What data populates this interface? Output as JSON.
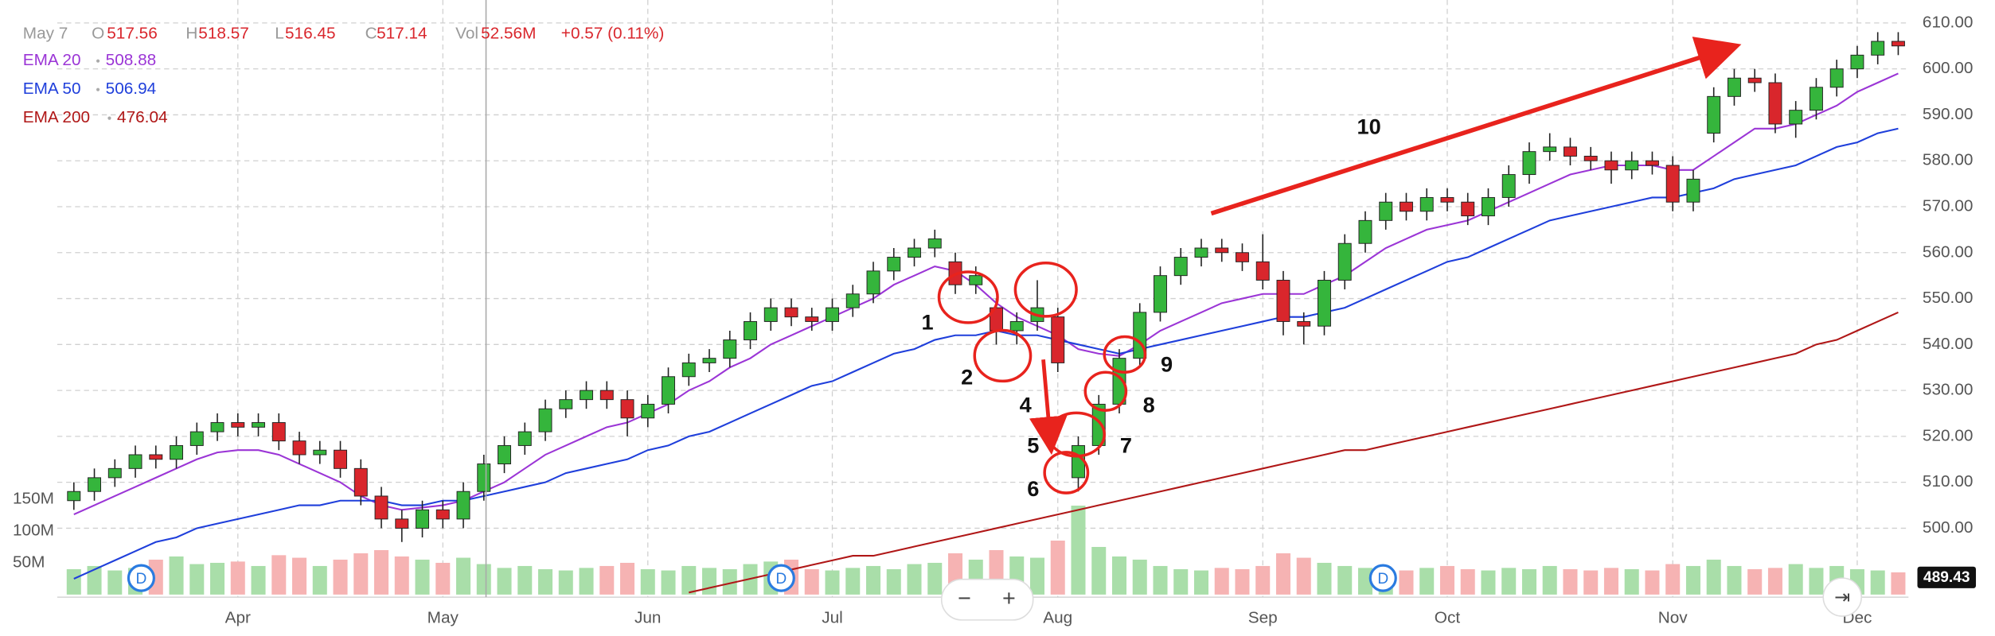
{
  "chart_data": {
    "type": "candlestick",
    "header": {
      "date": "May 7",
      "open_label": "O",
      "open": 517.56,
      "high_label": "H",
      "high": 518.57,
      "low_label": "L",
      "low": 516.45,
      "close_label": "C",
      "close": 517.14,
      "volume_label": "Vol",
      "volume": "52.56M",
      "change": "+0.57 (0.11%)"
    },
    "categories": [
      null,
      null,
      null,
      null,
      null,
      null,
      null,
      null,
      "Apr",
      null,
      null,
      null,
      null,
      null,
      null,
      null,
      null,
      null,
      "May",
      null,
      null,
      null,
      null,
      null,
      null,
      null,
      null,
      null,
      "Jun",
      null,
      null,
      null,
      null,
      null,
      null,
      null,
      null,
      "Jul",
      null,
      null,
      null,
      null,
      null,
      null,
      null,
      null,
      null,
      null,
      "Aug",
      null,
      null,
      null,
      null,
      null,
      null,
      null,
      null,
      null,
      "Sep",
      null,
      null,
      null,
      null,
      null,
      null,
      null,
      null,
      "Oct",
      null,
      null,
      null,
      null,
      null,
      null,
      null,
      null,
      null,
      null,
      "Nov",
      null,
      null,
      null,
      null,
      null,
      null,
      null,
      null,
      "Dec",
      null,
      null
    ],
    "open": [
      506,
      508,
      511,
      513,
      516,
      515,
      518,
      521,
      523,
      522,
      523,
      519,
      516,
      517,
      513,
      507,
      502,
      500,
      504,
      502,
      508,
      514,
      518,
      521,
      526,
      528,
      530,
      528,
      524,
      527,
      533,
      536,
      537,
      541,
      545,
      548,
      546,
      545,
      548,
      551,
      556,
      559,
      561,
      558,
      553,
      548,
      543,
      545,
      546,
      511,
      518,
      527,
      537,
      547,
      555,
      559,
      561,
      560,
      558,
      554,
      545,
      544,
      554,
      562,
      567,
      571,
      569,
      572,
      571,
      568,
      572,
      577,
      582,
      583,
      581,
      580,
      578,
      580,
      579,
      571,
      586,
      594,
      598,
      597,
      588,
      591,
      596,
      600,
      603,
      606
    ],
    "high": [
      510,
      513,
      515,
      518,
      518,
      520,
      523,
      525,
      525,
      525,
      525,
      521,
      519,
      519,
      515,
      509,
      504,
      506,
      506,
      510,
      516,
      520,
      523,
      528,
      530,
      532,
      532,
      530,
      529,
      535,
      538,
      539,
      543,
      547,
      550,
      550,
      548,
      550,
      553,
      558,
      561,
      563,
      565,
      560,
      557,
      550,
      547,
      554,
      548,
      520,
      529,
      539,
      549,
      557,
      561,
      563,
      563,
      562,
      564,
      556,
      547,
      556,
      564,
      569,
      573,
      573,
      574,
      574,
      573,
      574,
      579,
      584,
      586,
      585,
      583,
      582,
      582,
      582,
      581,
      578,
      596,
      600,
      600,
      599,
      593,
      598,
      602,
      605,
      608,
      608
    ],
    "low": [
      504,
      506,
      509,
      511,
      513,
      513,
      516,
      519,
      520,
      520,
      517,
      514,
      514,
      511,
      505,
      500,
      497,
      498,
      500,
      500,
      506,
      512,
      516,
      519,
      524,
      526,
      526,
      520,
      522,
      525,
      531,
      534,
      535,
      539,
      543,
      544,
      543,
      543,
      546,
      549,
      554,
      557,
      559,
      551,
      551,
      540,
      540,
      543,
      534,
      508,
      516,
      525,
      535,
      545,
      553,
      557,
      558,
      556,
      552,
      542,
      540,
      542,
      552,
      560,
      565,
      567,
      567,
      569,
      566,
      566,
      570,
      575,
      580,
      579,
      578,
      575,
      576,
      577,
      569,
      569,
      584,
      592,
      595,
      586,
      585,
      589,
      594,
      598,
      601,
      603
    ],
    "close": [
      508,
      511,
      513,
      516,
      515,
      518,
      521,
      523,
      522,
      523,
      519,
      516,
      517,
      513,
      507,
      502,
      500,
      504,
      502,
      508,
      514,
      518,
      521,
      526,
      528,
      530,
      528,
      524,
      527,
      533,
      536,
      537,
      541,
      545,
      548,
      546,
      545,
      548,
      551,
      556,
      559,
      561,
      563,
      553,
      555,
      543,
      545,
      548,
      536,
      518,
      527,
      537,
      547,
      555,
      559,
      561,
      560,
      558,
      554,
      545,
      544,
      554,
      562,
      567,
      571,
      569,
      572,
      571,
      568,
      572,
      577,
      582,
      583,
      581,
      580,
      578,
      580,
      579,
      571,
      576,
      594,
      598,
      597,
      588,
      591,
      596,
      600,
      603,
      606,
      605
    ],
    "up_color": "#35b53c",
    "down_color": "#d9262c",
    "ylim": [
      485,
      615
    ],
    "yticks": [
      {
        "value": 500,
        "label": "500.00"
      },
      {
        "value": 510,
        "label": "510.00"
      },
      {
        "value": 520,
        "label": "520.00"
      },
      {
        "value": 530,
        "label": "530.00"
      },
      {
        "value": 540,
        "label": "540.00"
      },
      {
        "value": 550,
        "label": "550.00"
      },
      {
        "value": 560,
        "label": "560.00"
      },
      {
        "value": 570,
        "label": "570.00"
      },
      {
        "value": 580,
        "label": "580.00"
      },
      {
        "value": 590,
        "label": "590.00"
      },
      {
        "value": 600,
        "label": "600.00"
      },
      {
        "value": 610,
        "label": "610.00"
      }
    ],
    "grid": true,
    "volume": {
      "values": [
        40,
        45,
        38,
        42,
        55,
        60,
        48,
        50,
        52,
        45,
        62,
        58,
        45,
        55,
        65,
        70,
        60,
        55,
        50,
        58,
        48,
        42,
        45,
        40,
        38,
        42,
        45,
        50,
        40,
        38,
        45,
        42,
        40,
        48,
        52,
        55,
        40,
        38,
        42,
        45,
        40,
        48,
        50,
        65,
        55,
        70,
        60,
        58,
        85,
        140,
        75,
        60,
        55,
        45,
        40,
        38,
        42,
        40,
        45,
        65,
        58,
        50,
        45,
        42,
        40,
        38,
        42,
        45,
        40,
        38,
        42,
        40,
        45,
        40,
        38,
        42,
        40,
        38,
        48,
        45,
        55,
        45,
        40,
        42,
        48,
        42,
        45,
        40,
        38,
        35
      ],
      "ylim": [
        0,
        150
      ],
      "yticks": [
        {
          "value": 50,
          "label": "50M"
        },
        {
          "value": 100,
          "label": "100M"
        },
        {
          "value": 150,
          "label": "150M"
        }
      ],
      "up_color": "#a9dea9",
      "down_color": "#f6b3b3"
    },
    "series": [
      {
        "name": "EMA 20",
        "readout": 508.88,
        "color": "#9b35d6",
        "values": [
          503,
          505,
          507,
          509,
          511,
          513,
          515,
          516.5,
          517,
          517,
          516,
          514,
          512,
          510,
          507,
          505,
          504,
          504.5,
          505,
          506,
          508,
          510,
          513,
          516,
          518,
          520,
          522,
          523,
          525,
          527,
          530,
          532,
          535,
          537,
          540,
          542,
          544,
          546,
          548,
          550,
          553,
          555,
          557,
          556,
          553,
          549,
          546,
          544,
          542,
          539,
          538,
          537.5,
          540,
          543,
          545,
          547,
          549,
          550,
          551,
          551,
          551,
          553,
          555,
          558,
          561,
          563,
          565,
          566,
          567,
          569,
          571,
          573,
          575,
          577,
          578,
          579,
          579,
          579,
          578,
          578,
          581,
          584,
          587,
          587,
          588,
          590,
          592,
          595,
          597,
          599
        ]
      },
      {
        "name": "EMA 50",
        "readout": 506.94,
        "color": "#1f3fdb",
        "values": [
          489,
          491,
          493,
          495,
          497,
          498,
          500,
          501,
          502,
          503,
          504,
          505,
          505,
          506,
          506,
          506,
          505,
          505,
          506,
          506,
          507,
          508,
          509,
          510,
          512,
          513,
          514,
          515,
          517,
          518,
          520,
          521,
          523,
          525,
          527,
          529,
          531,
          532,
          534,
          536,
          538,
          539,
          541,
          542,
          542,
          543,
          542,
          542,
          541,
          540,
          539,
          538,
          539,
          540,
          541,
          542,
          543,
          544,
          545,
          546,
          546,
          547,
          548,
          550,
          552,
          554,
          556,
          558,
          559,
          561,
          563,
          565,
          567,
          568,
          569,
          570,
          571,
          572,
          572,
          573,
          574,
          576,
          577,
          578,
          579,
          581,
          583,
          584,
          586,
          587
        ]
      },
      {
        "name": "EMA 200",
        "readout": 476.04,
        "color": "#b01717",
        "values": [
          null,
          null,
          null,
          null,
          null,
          null,
          null,
          null,
          null,
          null,
          null,
          null,
          null,
          null,
          null,
          null,
          null,
          null,
          null,
          null,
          null,
          null,
          null,
          null,
          null,
          null,
          null,
          null,
          null,
          null,
          486,
          487,
          488,
          489,
          490,
          491,
          492,
          493,
          494,
          494,
          495,
          496,
          497,
          498,
          499,
          500,
          501,
          502,
          503,
          504,
          505,
          506,
          507,
          508,
          509,
          510,
          511,
          512,
          513,
          514,
          515,
          516,
          517,
          517,
          518,
          519,
          520,
          521,
          522,
          523,
          524,
          525,
          526,
          527,
          528,
          529,
          530,
          531,
          532,
          533,
          534,
          535,
          536,
          537,
          538,
          540,
          541,
          543,
          545,
          547
        ]
      }
    ],
    "annotations": [
      "1",
      "2",
      "4",
      "5",
      "6",
      "7",
      "8",
      "9",
      "10"
    ],
    "event_marker": "D",
    "last_tag": 489.43,
    "buttons": {
      "zoom_out": "−",
      "zoom_in": "+",
      "jump": "⇥"
    }
  }
}
